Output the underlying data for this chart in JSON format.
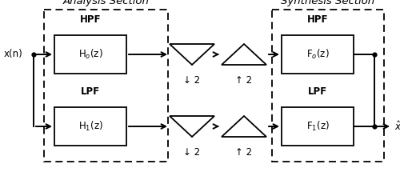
{
  "fig_width": 5.0,
  "fig_height": 2.15,
  "dpi": 100,
  "bg_color": "#ffffff",
  "analysis_label": "Analysis Section",
  "synthesis_label": "Synthesis Section",
  "input_label": "x(n)",
  "output_label": "$\\hat{x}$(n)",
  "h0_label": "H$_o$(z)",
  "h1_label": "H$_1$(z)",
  "f0_label": "F$_o$(z)",
  "f1_label": "F$_1$(z)",
  "lpf_label": "LPF",
  "hpf_label": "HPF",
  "down2_label": "↓ 2",
  "up2_label": "↑ 2"
}
